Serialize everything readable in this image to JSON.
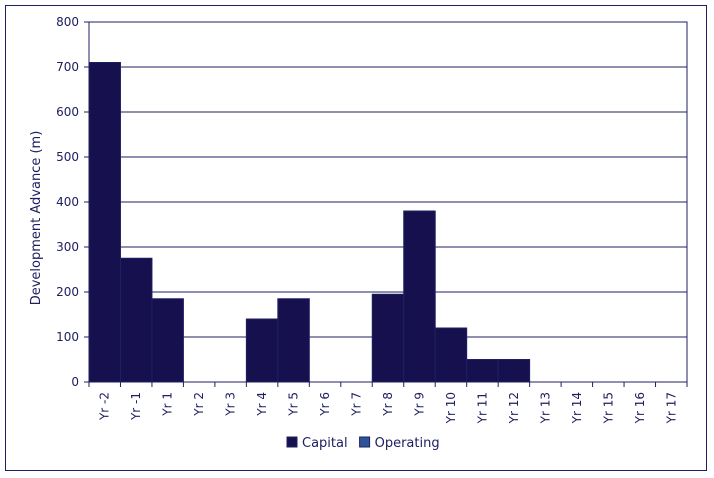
{
  "chart_data": {
    "type": "bar",
    "title": "",
    "xlabel": "",
    "ylabel": "Development Advance (m)",
    "ylim": [
      0,
      800
    ],
    "yticks": [
      0,
      100,
      200,
      300,
      400,
      500,
      600,
      700,
      800
    ],
    "categories": [
      "Yr -2",
      "Yr -1",
      "Yr 1",
      "Yr 2",
      "Yr 3",
      "Yr 4",
      "Yr 5",
      "Yr 6",
      "Yr 7",
      "Yr 8",
      "Yr 9",
      "Yr 10",
      "Yr 11",
      "Yr 12",
      "Yr 13",
      "Yr 14",
      "Yr 15",
      "Yr 16",
      "Yr 17"
    ],
    "stacked": true,
    "series": [
      {
        "name": "Capital",
        "color": "#17104f",
        "values": [
          710,
          275,
          185,
          0,
          0,
          140,
          185,
          0,
          0,
          195,
          380,
          120,
          50,
          50,
          0,
          0,
          0,
          0,
          0
        ]
      },
      {
        "name": "Operating",
        "color": "#2e5597",
        "values": [
          0,
          0,
          0,
          0,
          0,
          0,
          0,
          0,
          0,
          0,
          0,
          0,
          0,
          0,
          0,
          0,
          0,
          0,
          0
        ]
      }
    ],
    "grid": true,
    "legend_position": "bottom"
  }
}
